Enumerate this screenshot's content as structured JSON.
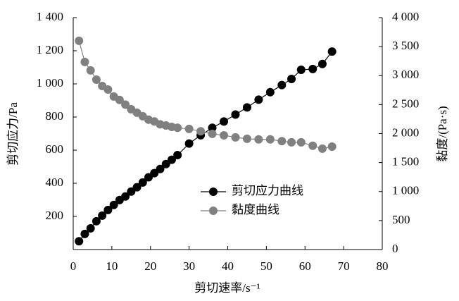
{
  "chart_data": {
    "type": "line",
    "x_label": "剪切速率/s⁻¹",
    "y_label": "剪切应力/Pa",
    "y2_label": "黏度/(Pa·s)",
    "x": [
      1.5,
      3,
      4.5,
      6,
      7.5,
      9,
      10.5,
      12,
      13.5,
      15,
      16.5,
      18,
      19.5,
      21,
      22.5,
      24,
      25.5,
      27,
      30,
      33,
      36,
      39,
      42,
      45,
      48,
      51,
      54,
      56.5,
      59,
      62,
      64.5,
      67
    ],
    "series": [
      {
        "name": "剪切应力曲线",
        "color": "#000000",
        "axis": "y",
        "values": [
          50,
          94,
          128,
          171,
          205,
          239,
          269,
          299,
          320,
          350,
          376,
          405,
          436,
          461,
          486,
          516,
          542,
          570,
          640,
          690,
          735,
          773,
          815,
          858,
          905,
          950,
          993,
          1030,
          1085,
          1090,
          1120,
          1195
        ]
      },
      {
        "name": "黏度曲线",
        "color": "#808080",
        "axis": "y2",
        "values": [
          3600,
          3235,
          3090,
          2930,
          2820,
          2760,
          2640,
          2580,
          2500,
          2420,
          2360,
          2300,
          2240,
          2210,
          2160,
          2140,
          2115,
          2100,
          2080,
          2040,
          1995,
          1970,
          1935,
          1910,
          1900,
          1900,
          1870,
          1850,
          1850,
          1790,
          1740,
          1775
        ]
      }
    ],
    "xlim": [
      0,
      80
    ],
    "xticks": [
      0,
      10,
      20,
      30,
      40,
      50,
      60,
      70,
      80
    ],
    "ylim": [
      0,
      1400
    ],
    "yticks": [
      200,
      400,
      600,
      800,
      {
        "value": 1000,
        "label": "1 000"
      },
      {
        "value": 1200,
        "label": "1 200"
      },
      {
        "value": 1400,
        "label": "1 400"
      }
    ],
    "y2lim": [
      0,
      4000
    ],
    "y2ticks": [
      0,
      500,
      {
        "value": 1000,
        "label": "1 000"
      },
      {
        "value": 1500,
        "label": "1 500"
      },
      {
        "value": 2000,
        "label": "2 000"
      },
      {
        "value": 2500,
        "label": "2 500"
      },
      {
        "value": 3000,
        "label": "3 000"
      },
      {
        "value": 3500,
        "label": "3 500"
      },
      {
        "value": 4000,
        "label": "4 000"
      }
    ],
    "legend": "center-right"
  }
}
